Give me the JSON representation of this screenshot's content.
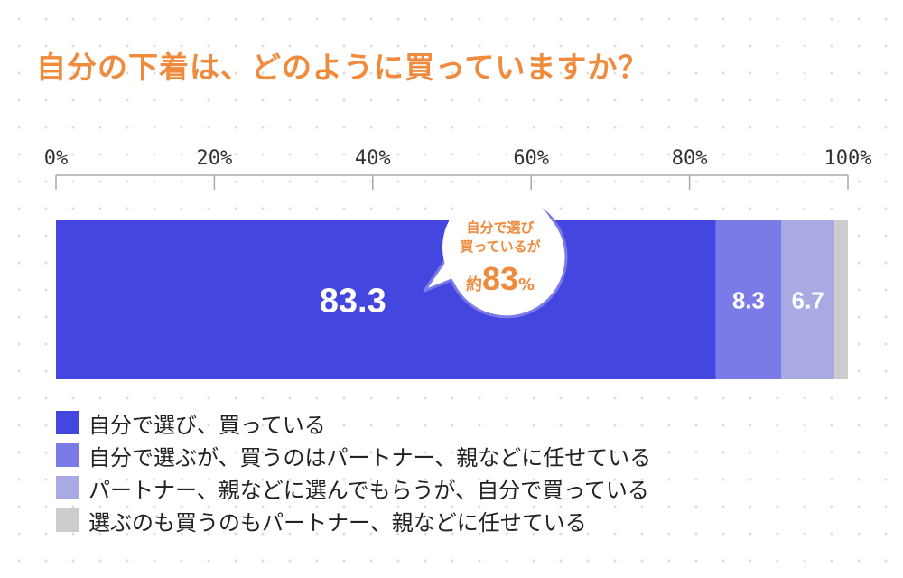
{
  "chart_data": {
    "type": "bar",
    "orientation": "horizontal-stacked",
    "title": "自分の下着は、どのように買っていますか？",
    "x_ticks": [
      "0%",
      "20%",
      "40%",
      "60%",
      "80%",
      "100%"
    ],
    "xlim": [
      0,
      100
    ],
    "series": [
      {
        "name": "自分で選び、買っている",
        "value": 83.3,
        "label": "83.3",
        "color": "#4446e0"
      },
      {
        "name": "自分で選ぶが、買うのはパートナー、親などに任せている",
        "value": 8.3,
        "label": "8.3",
        "color": "#7b7be8"
      },
      {
        "name": "パートナー、親などに選んでもらうが、自分で買っている",
        "value": 6.7,
        "label": "6.7",
        "color": "#a9a9e4"
      },
      {
        "name": "選ぶのも買うのもパートナー、親などに任せている",
        "value": 1.7,
        "label": "",
        "color": "#cccccc"
      }
    ],
    "callout": {
      "line1": "自分で選び",
      "line2": "買っているが",
      "prefix": "約",
      "value": "83",
      "unit": "%"
    },
    "legend_placement": "bottom-left",
    "grid": false
  }
}
